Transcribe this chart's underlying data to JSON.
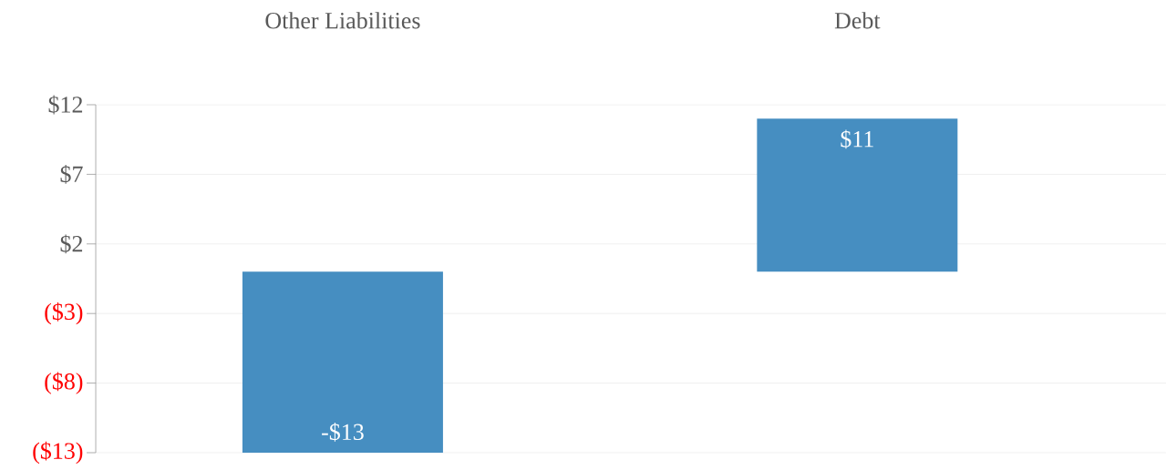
{
  "chart_data": {
    "type": "bar",
    "categories": [
      "Other Liabilities",
      "Debt"
    ],
    "values": [
      -13,
      11
    ],
    "value_labels": [
      "-$13",
      "$11"
    ],
    "color": "#468ec1",
    "ylim": [
      -13,
      12
    ],
    "yticks": [
      {
        "value": 12,
        "label": "$12"
      },
      {
        "value": 7,
        "label": "$7"
      },
      {
        "value": 2,
        "label": "$2"
      },
      {
        "value": -3,
        "label": "($3)"
      },
      {
        "value": -8,
        "label": "($8)"
      },
      {
        "value": -13,
        "label": "($13)"
      }
    ],
    "grid": "y"
  }
}
